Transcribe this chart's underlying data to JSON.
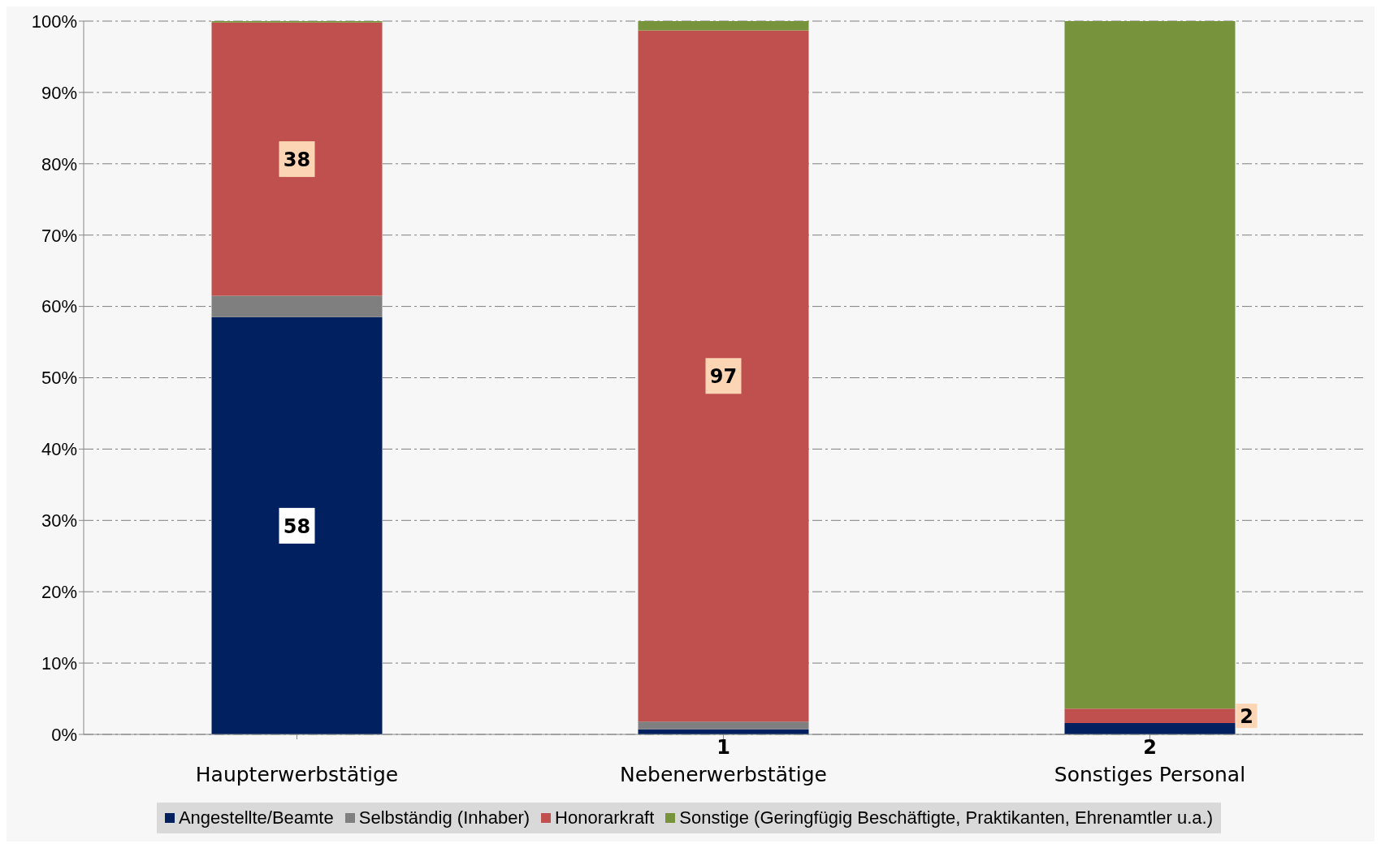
{
  "chart_data": {
    "type": "bar",
    "stacked": true,
    "categories": [
      "Haupterwerbstätige",
      "Nebenerwerbstätige",
      "Sonstiges Personal"
    ],
    "series": [
      {
        "name": "Angestellte/Beamte",
        "color": "#002060",
        "values": [
          58.5,
          0.7,
          1.6
        ],
        "value_labels": [
          "58",
          "1",
          "2"
        ]
      },
      {
        "name": "Selbständig (Inhaber)",
        "color": "#7f7f7f",
        "values": [
          3,
          1.1,
          0
        ]
      },
      {
        "name": "Honorarkraft",
        "color": "#c0504d",
        "values": [
          38.3,
          96.9,
          2
        ],
        "value_labels": [
          "38",
          "97",
          "2"
        ]
      },
      {
        "name": "Sonstige (Geringfügig Beschäftigte, Praktikanten, Ehrenamtler u.a.)",
        "color": "#77933c",
        "values": [
          0.2,
          1.3,
          96.4
        ]
      }
    ],
    "ylim": [
      0,
      100
    ],
    "yticks": [
      {
        "value": 0,
        "label": "0%"
      },
      {
        "value": 10,
        "label": "10%"
      },
      {
        "value": 20,
        "label": "20%"
      },
      {
        "value": 30,
        "label": "30%"
      },
      {
        "value": 40,
        "label": "40%"
      },
      {
        "value": 50,
        "label": "50%"
      },
      {
        "value": 60,
        "label": "60%"
      },
      {
        "value": 70,
        "label": "70%"
      },
      {
        "value": 80,
        "label": "80%"
      },
      {
        "value": 90,
        "label": "90%"
      },
      {
        "value": 100,
        "label": "100%"
      }
    ],
    "grid": "y",
    "legend": "bottom"
  }
}
